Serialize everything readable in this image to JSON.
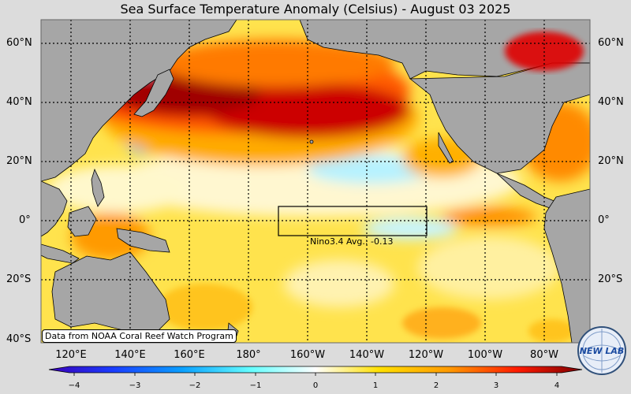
{
  "title": "Sea Surface Temperature Anomaly (Celsius) - August 03 2025",
  "lat_labels": [
    "60°N",
    "40°N",
    "20°N",
    "0°",
    "20°S",
    "40°S"
  ],
  "lon_labels": [
    "120°E",
    "140°E",
    "160°E",
    "180°",
    "160°W",
    "140°W",
    "120°W",
    "100°W",
    "80°W"
  ],
  "credit": "Data from NOAA Coral Reef Watch Program",
  "nino_label": "Nino3.4 Avg.: -0.13",
  "colorbar_ticks": [
    "−4",
    "−3",
    "−2",
    "−1",
    "0",
    "1",
    "2",
    "3",
    "4"
  ],
  "logo_text": "NEW LAB",
  "colors": {
    "land": "#a6a6a6",
    "cold": "#3a00b8",
    "neutral": "#ffffff",
    "warm": "#ffd000",
    "hot": "#e00000",
    "extreme": "#8b0000"
  }
}
